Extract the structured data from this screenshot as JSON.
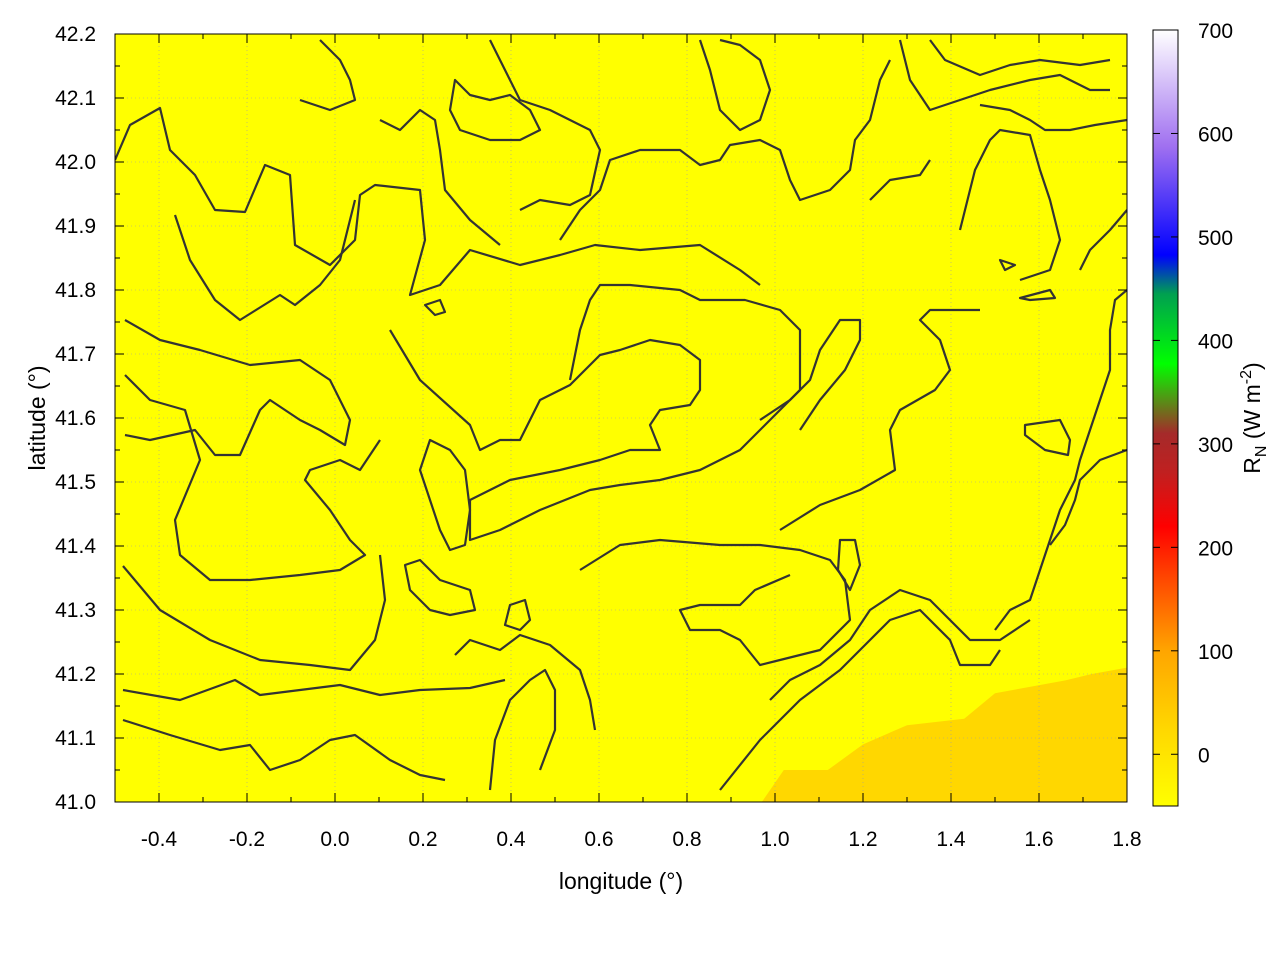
{
  "chart_data": {
    "type": "heatmap",
    "title": "",
    "xlabel": "longitude (°)",
    "ylabel": "latitude (°)",
    "xlim": [
      -0.5,
      1.8
    ],
    "ylim": [
      41.0,
      42.2
    ],
    "xticks": [
      "-0.4",
      "-0.2",
      "0.0",
      "0.2",
      "0.4",
      "0.6",
      "0.8",
      "1.0",
      "1.2",
      "1.4",
      "1.6",
      "1.8"
    ],
    "yticks": [
      "41.0",
      "41.1",
      "41.2",
      "41.3",
      "41.4",
      "41.5",
      "41.6",
      "41.7",
      "41.8",
      "41.9",
      "42.0",
      "42.1",
      "42.2"
    ],
    "grid": true,
    "contours": true,
    "colorbar": {
      "label_main": "R",
      "label_sub": "N",
      "label_unit_pre": " (W m",
      "label_sup": "-2",
      "label_unit_post": ")",
      "range": [
        -50,
        700
      ],
      "ticks": [
        "0",
        "100",
        "200",
        "300",
        "400",
        "500",
        "600",
        "700"
      ],
      "palette": [
        "#ffff00",
        "#ffa500",
        "#ff0000",
        "#b22222",
        "#a52a2a",
        "#00ff00",
        "#0000ff",
        "#9370db",
        "#ffffff"
      ]
    },
    "field_description_colors": {
      "dominant": "#ffff00",
      "lower_region": "#ffd700"
    }
  }
}
